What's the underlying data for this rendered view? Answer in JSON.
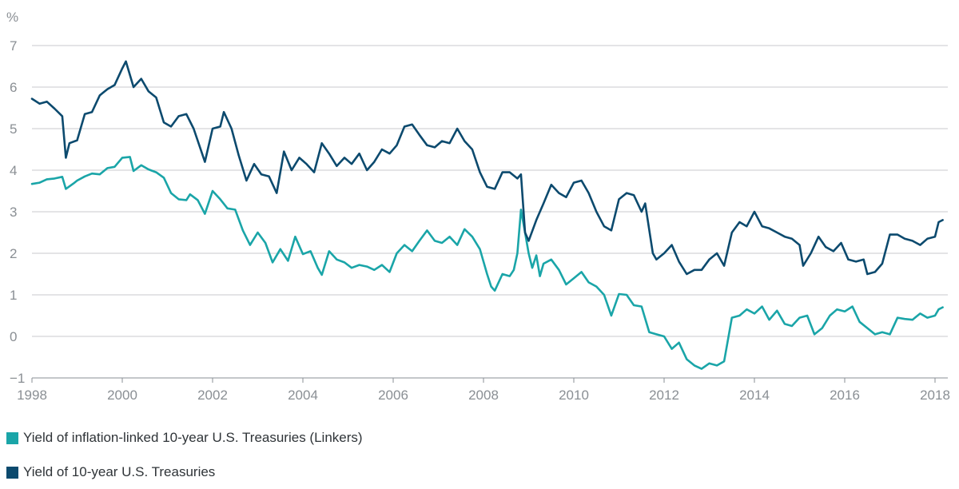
{
  "chart_data": {
    "type": "line",
    "ylabel": "%",
    "ylim": [
      -1,
      7
    ],
    "xlim": [
      1998,
      2018.5
    ],
    "yticks": [
      -1,
      0,
      1,
      2,
      3,
      4,
      5,
      6,
      7
    ],
    "ytick_labels": [
      "−1",
      "0",
      "1",
      "2",
      "3",
      "4",
      "5",
      "6",
      "7"
    ],
    "xticks": [
      1998,
      2000,
      2002,
      2004,
      2006,
      2008,
      2010,
      2012,
      2014,
      2016,
      2018
    ],
    "xtick_labels": [
      "1998",
      "2000",
      "2002",
      "2004",
      "2006",
      "2008",
      "2010",
      "2012",
      "2014",
      "2016",
      "2018"
    ],
    "grid": "horizontal",
    "legend_position": "bottom-left",
    "series": [
      {
        "name": "Yield of inflation-linked 10-year U.S. Treasuries (Linkers)",
        "color": "#1aa5a8",
        "points": [
          [
            1998.0,
            3.67
          ],
          [
            1998.17,
            3.7
          ],
          [
            1998.33,
            3.78
          ],
          [
            1998.5,
            3.8
          ],
          [
            1998.67,
            3.84
          ],
          [
            1998.75,
            3.55
          ],
          [
            1998.92,
            3.68
          ],
          [
            1999.0,
            3.75
          ],
          [
            1999.17,
            3.85
          ],
          [
            1999.33,
            3.92
          ],
          [
            1999.5,
            3.9
          ],
          [
            1999.67,
            4.05
          ],
          [
            1999.83,
            4.08
          ],
          [
            2000.0,
            4.3
          ],
          [
            2000.17,
            4.32
          ],
          [
            2000.25,
            3.98
          ],
          [
            2000.42,
            4.12
          ],
          [
            2000.58,
            4.02
          ],
          [
            2000.75,
            3.95
          ],
          [
            2000.92,
            3.82
          ],
          [
            2001.08,
            3.45
          ],
          [
            2001.25,
            3.3
          ],
          [
            2001.42,
            3.28
          ],
          [
            2001.5,
            3.42
          ],
          [
            2001.67,
            3.28
          ],
          [
            2001.83,
            2.95
          ],
          [
            2002.0,
            3.5
          ],
          [
            2002.17,
            3.3
          ],
          [
            2002.33,
            3.08
          ],
          [
            2002.5,
            3.05
          ],
          [
            2002.67,
            2.55
          ],
          [
            2002.83,
            2.2
          ],
          [
            2003.0,
            2.5
          ],
          [
            2003.17,
            2.25
          ],
          [
            2003.33,
            1.78
          ],
          [
            2003.5,
            2.1
          ],
          [
            2003.67,
            1.82
          ],
          [
            2003.83,
            2.4
          ],
          [
            2004.0,
            1.98
          ],
          [
            2004.17,
            2.05
          ],
          [
            2004.33,
            1.65
          ],
          [
            2004.42,
            1.48
          ],
          [
            2004.58,
            2.05
          ],
          [
            2004.75,
            1.85
          ],
          [
            2004.92,
            1.78
          ],
          [
            2005.08,
            1.65
          ],
          [
            2005.25,
            1.72
          ],
          [
            2005.42,
            1.68
          ],
          [
            2005.58,
            1.6
          ],
          [
            2005.75,
            1.72
          ],
          [
            2005.92,
            1.55
          ],
          [
            2006.08,
            2.0
          ],
          [
            2006.25,
            2.2
          ],
          [
            2006.42,
            2.05
          ],
          [
            2006.58,
            2.3
          ],
          [
            2006.75,
            2.55
          ],
          [
            2006.92,
            2.3
          ],
          [
            2007.08,
            2.25
          ],
          [
            2007.25,
            2.4
          ],
          [
            2007.42,
            2.2
          ],
          [
            2007.58,
            2.58
          ],
          [
            2007.75,
            2.4
          ],
          [
            2007.92,
            2.1
          ],
          [
            2008.08,
            1.5
          ],
          [
            2008.17,
            1.2
          ],
          [
            2008.25,
            1.1
          ],
          [
            2008.42,
            1.5
          ],
          [
            2008.58,
            1.45
          ],
          [
            2008.67,
            1.6
          ],
          [
            2008.75,
            2.0
          ],
          [
            2008.83,
            3.05
          ],
          [
            2008.92,
            2.5
          ],
          [
            2009.0,
            2.0
          ],
          [
            2009.08,
            1.65
          ],
          [
            2009.17,
            1.95
          ],
          [
            2009.25,
            1.45
          ],
          [
            2009.33,
            1.75
          ],
          [
            2009.5,
            1.85
          ],
          [
            2009.67,
            1.6
          ],
          [
            2009.83,
            1.25
          ],
          [
            2010.0,
            1.4
          ],
          [
            2010.17,
            1.55
          ],
          [
            2010.33,
            1.3
          ],
          [
            2010.5,
            1.2
          ],
          [
            2010.67,
            1.0
          ],
          [
            2010.83,
            0.5
          ],
          [
            2011.0,
            1.02
          ],
          [
            2011.17,
            1.0
          ],
          [
            2011.33,
            0.75
          ],
          [
            2011.5,
            0.72
          ],
          [
            2011.67,
            0.1
          ],
          [
            2011.83,
            0.05
          ],
          [
            2012.0,
            0.0
          ],
          [
            2012.17,
            -0.3
          ],
          [
            2012.33,
            -0.15
          ],
          [
            2012.5,
            -0.55
          ],
          [
            2012.67,
            -0.7
          ],
          [
            2012.83,
            -0.78
          ],
          [
            2013.0,
            -0.65
          ],
          [
            2013.17,
            -0.7
          ],
          [
            2013.33,
            -0.6
          ],
          [
            2013.5,
            0.45
          ],
          [
            2013.67,
            0.5
          ],
          [
            2013.83,
            0.65
          ],
          [
            2014.0,
            0.55
          ],
          [
            2014.17,
            0.72
          ],
          [
            2014.33,
            0.4
          ],
          [
            2014.5,
            0.62
          ],
          [
            2014.67,
            0.3
          ],
          [
            2014.83,
            0.25
          ],
          [
            2015.0,
            0.45
          ],
          [
            2015.17,
            0.5
          ],
          [
            2015.33,
            0.05
          ],
          [
            2015.5,
            0.2
          ],
          [
            2015.67,
            0.5
          ],
          [
            2015.83,
            0.65
          ],
          [
            2016.0,
            0.6
          ],
          [
            2016.17,
            0.72
          ],
          [
            2016.33,
            0.35
          ],
          [
            2016.5,
            0.2
          ],
          [
            2016.67,
            0.05
          ],
          [
            2016.83,
            0.1
          ],
          [
            2017.0,
            0.05
          ],
          [
            2017.17,
            0.45
          ],
          [
            2017.33,
            0.42
          ],
          [
            2017.5,
            0.4
          ],
          [
            2017.67,
            0.55
          ],
          [
            2017.83,
            0.45
          ],
          [
            2018.0,
            0.5
          ],
          [
            2018.08,
            0.65
          ],
          [
            2018.17,
            0.7
          ]
        ]
      },
      {
        "name": "Yield of 10-year U.S. Treasuries",
        "color": "#0c4a6e",
        "points": [
          [
            1998.0,
            5.72
          ],
          [
            1998.17,
            5.6
          ],
          [
            1998.33,
            5.65
          ],
          [
            1998.5,
            5.48
          ],
          [
            1998.67,
            5.3
          ],
          [
            1998.75,
            4.3
          ],
          [
            1998.83,
            4.65
          ],
          [
            1999.0,
            4.72
          ],
          [
            1999.17,
            5.35
          ],
          [
            1999.33,
            5.4
          ],
          [
            1999.5,
            5.8
          ],
          [
            1999.67,
            5.95
          ],
          [
            1999.83,
            6.05
          ],
          [
            2000.0,
            6.45
          ],
          [
            2000.08,
            6.62
          ],
          [
            2000.25,
            6.0
          ],
          [
            2000.42,
            6.2
          ],
          [
            2000.58,
            5.9
          ],
          [
            2000.75,
            5.75
          ],
          [
            2000.92,
            5.15
          ],
          [
            2001.08,
            5.05
          ],
          [
            2001.25,
            5.3
          ],
          [
            2001.42,
            5.35
          ],
          [
            2001.58,
            5.0
          ],
          [
            2001.83,
            4.2
          ],
          [
            2002.0,
            5.0
          ],
          [
            2002.17,
            5.05
          ],
          [
            2002.25,
            5.4
          ],
          [
            2002.42,
            5.0
          ],
          [
            2002.58,
            4.35
          ],
          [
            2002.75,
            3.75
          ],
          [
            2002.92,
            4.15
          ],
          [
            2003.08,
            3.9
          ],
          [
            2003.25,
            3.85
          ],
          [
            2003.42,
            3.45
          ],
          [
            2003.58,
            4.45
          ],
          [
            2003.75,
            4.0
          ],
          [
            2003.92,
            4.3
          ],
          [
            2004.08,
            4.15
          ],
          [
            2004.25,
            3.95
          ],
          [
            2004.42,
            4.65
          ],
          [
            2004.58,
            4.4
          ],
          [
            2004.75,
            4.1
          ],
          [
            2004.92,
            4.3
          ],
          [
            2005.08,
            4.15
          ],
          [
            2005.25,
            4.4
          ],
          [
            2005.42,
            4.0
          ],
          [
            2005.58,
            4.2
          ],
          [
            2005.75,
            4.5
          ],
          [
            2005.92,
            4.4
          ],
          [
            2006.08,
            4.6
          ],
          [
            2006.25,
            5.05
          ],
          [
            2006.42,
            5.1
          ],
          [
            2006.58,
            4.85
          ],
          [
            2006.75,
            4.6
          ],
          [
            2006.92,
            4.55
          ],
          [
            2007.08,
            4.7
          ],
          [
            2007.25,
            4.65
          ],
          [
            2007.42,
            5.0
          ],
          [
            2007.58,
            4.7
          ],
          [
            2007.75,
            4.5
          ],
          [
            2007.92,
            3.95
          ],
          [
            2008.08,
            3.6
          ],
          [
            2008.25,
            3.55
          ],
          [
            2008.42,
            3.95
          ],
          [
            2008.58,
            3.95
          ],
          [
            2008.75,
            3.8
          ],
          [
            2008.83,
            3.9
          ],
          [
            2008.92,
            2.5
          ],
          [
            2009.0,
            2.3
          ],
          [
            2009.17,
            2.8
          ],
          [
            2009.33,
            3.2
          ],
          [
            2009.5,
            3.65
          ],
          [
            2009.67,
            3.45
          ],
          [
            2009.83,
            3.35
          ],
          [
            2010.0,
            3.7
          ],
          [
            2010.17,
            3.75
          ],
          [
            2010.33,
            3.45
          ],
          [
            2010.5,
            3.0
          ],
          [
            2010.67,
            2.65
          ],
          [
            2010.83,
            2.55
          ],
          [
            2011.0,
            3.3
          ],
          [
            2011.17,
            3.45
          ],
          [
            2011.33,
            3.4
          ],
          [
            2011.5,
            3.0
          ],
          [
            2011.58,
            3.2
          ],
          [
            2011.75,
            2.0
          ],
          [
            2011.83,
            1.85
          ],
          [
            2012.0,
            2.0
          ],
          [
            2012.17,
            2.2
          ],
          [
            2012.33,
            1.8
          ],
          [
            2012.5,
            1.5
          ],
          [
            2012.67,
            1.6
          ],
          [
            2012.83,
            1.6
          ],
          [
            2013.0,
            1.85
          ],
          [
            2013.17,
            2.0
          ],
          [
            2013.33,
            1.7
          ],
          [
            2013.5,
            2.5
          ],
          [
            2013.67,
            2.75
          ],
          [
            2013.83,
            2.65
          ],
          [
            2014.0,
            3.0
          ],
          [
            2014.17,
            2.65
          ],
          [
            2014.33,
            2.6
          ],
          [
            2014.5,
            2.5
          ],
          [
            2014.67,
            2.4
          ],
          [
            2014.83,
            2.35
          ],
          [
            2015.0,
            2.2
          ],
          [
            2015.08,
            1.7
          ],
          [
            2015.25,
            2.0
          ],
          [
            2015.42,
            2.4
          ],
          [
            2015.58,
            2.15
          ],
          [
            2015.75,
            2.05
          ],
          [
            2015.92,
            2.25
          ],
          [
            2016.08,
            1.85
          ],
          [
            2016.25,
            1.8
          ],
          [
            2016.42,
            1.85
          ],
          [
            2016.5,
            1.5
          ],
          [
            2016.67,
            1.55
          ],
          [
            2016.83,
            1.75
          ],
          [
            2017.0,
            2.45
          ],
          [
            2017.17,
            2.45
          ],
          [
            2017.33,
            2.35
          ],
          [
            2017.5,
            2.3
          ],
          [
            2017.67,
            2.2
          ],
          [
            2017.83,
            2.35
          ],
          [
            2018.0,
            2.4
          ],
          [
            2018.08,
            2.75
          ],
          [
            2018.17,
            2.8
          ]
        ]
      }
    ]
  }
}
